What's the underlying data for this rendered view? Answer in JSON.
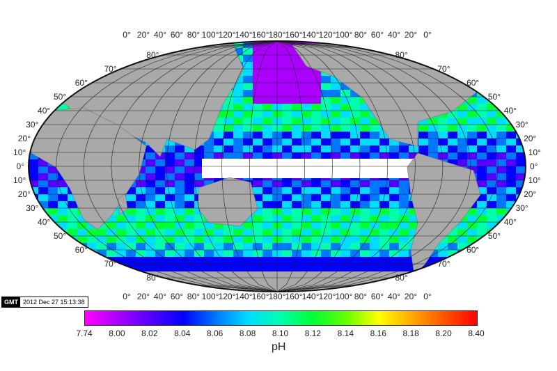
{
  "map": {
    "top_lon_labels": [
      "0°",
      "20°",
      "40°",
      "60°",
      "80°",
      "100°",
      "120°",
      "140°",
      "160°",
      "180°",
      "160°",
      "140°",
      "120°",
      "100°",
      "80°",
      "60°",
      "40°",
      "20°",
      "0°"
    ],
    "bottom_lon_labels": [
      "0°",
      "20°",
      "40°",
      "60°",
      "80°",
      "100°",
      "120°",
      "140°",
      "160°",
      "180°",
      "160°",
      "140°",
      "120°",
      "100°",
      "80°",
      "60°",
      "40°",
      "20°",
      "0°"
    ],
    "lat_labels": [
      "80°",
      "70°",
      "60°",
      "50°",
      "40°",
      "30°",
      "20°",
      "10°",
      "0°",
      "10°",
      "20°",
      "30°",
      "40°",
      "50°",
      "60°",
      "70°",
      "80°"
    ],
    "land_color": "#a9a9a9",
    "coastline_highlight_color": "#ff8080"
  },
  "stamp": {
    "logo": "GMT",
    "timestamp": "2012 Dec 27 15:13:38"
  },
  "colorbar": {
    "tick_labels": [
      "7.74",
      "8.00",
      "8.02",
      "8.04",
      "8.06",
      "8.08",
      "8.10",
      "8.12",
      "8.14",
      "8.16",
      "8.18",
      "8.20",
      "8.40"
    ],
    "colors": [
      "#ff00ff",
      "#aa00ff",
      "#5500ff",
      "#0000ff",
      "#0077ff",
      "#00ddff",
      "#00ffaa",
      "#00ff33",
      "#66ff00",
      "#ffff00",
      "#ffaa00",
      "#ff5500",
      "#ff0000"
    ],
    "unit_label": "pH"
  }
}
